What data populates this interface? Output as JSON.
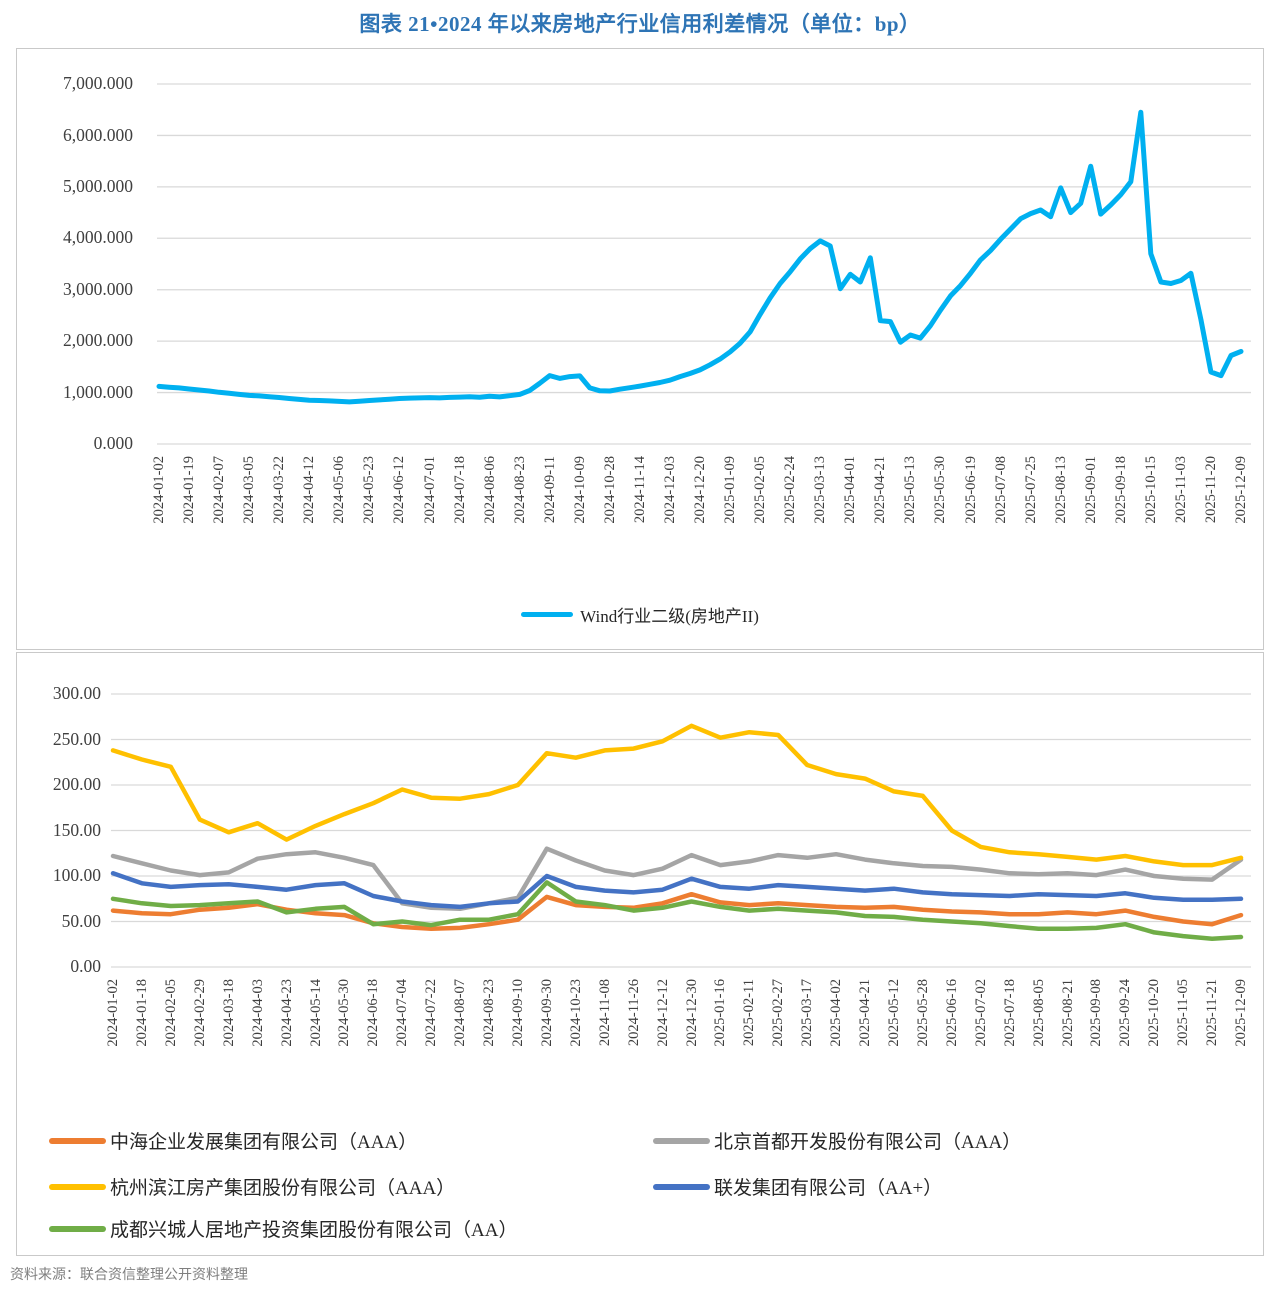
{
  "title": "图表 21•2024 年以来房地产行业信用利差情况（单位：bp）",
  "source": "资料来源：联合资信整理公开资料整理",
  "colors": {
    "title_blue": "#2E74B5",
    "grid": "#D9D9D9",
    "axis_text": "#404040",
    "wind_line": "#00B0F0",
    "orange": "#ED7D31",
    "gray": "#A5A5A5",
    "yellow": "#FFC000",
    "blue": "#4472C4",
    "green": "#70AD47"
  },
  "chart_data": [
    {
      "type": "line",
      "title": "",
      "xlabel": "",
      "ylabel": "",
      "ylim": [
        0,
        7000
      ],
      "grid": true,
      "legend_position": "bottom-center",
      "ytick_labels": [
        "0.000",
        "1,000.000",
        "2,000.000",
        "3,000.000",
        "4,000.000",
        "5,000.000",
        "6,000.000",
        "7,000.000"
      ],
      "yticks": [
        0,
        1000,
        2000,
        3000,
        4000,
        5000,
        6000,
        7000
      ],
      "categories": [
        "2024-01-02",
        "2024-01-19",
        "2024-02-07",
        "2024-03-05",
        "2024-03-22",
        "2024-04-12",
        "2024-05-06",
        "2024-05-23",
        "2024-06-12",
        "2024-07-01",
        "2024-07-18",
        "2024-08-06",
        "2024-08-23",
        "2024-09-11",
        "2024-10-09",
        "2024-10-28",
        "2024-11-14",
        "2024-12-03",
        "2024-12-20",
        "2025-01-09",
        "2025-02-05",
        "2025-02-24",
        "2025-03-13",
        "2025-04-01",
        "2025-04-21",
        "2025-05-13",
        "2025-05-30",
        "2025-06-19",
        "2025-07-08",
        "2025-07-25",
        "2025-08-13",
        "2025-09-01",
        "2025-09-18",
        "2025-10-15",
        "2025-11-03",
        "2025-11-20",
        "2025-12-09"
      ],
      "series": [
        {
          "name": "Wind行业二级(房地产II)",
          "color": "#00B0F0",
          "points_per_category_interval": 3,
          "values": [
            1120,
            1105,
            1090,
            1070,
            1050,
            1030,
            1005,
            985,
            965,
            945,
            935,
            920,
            905,
            885,
            868,
            852,
            845,
            838,
            828,
            818,
            832,
            845,
            858,
            872,
            885,
            892,
            896,
            902,
            896,
            906,
            912,
            920,
            908,
            928,
            915,
            940,
            965,
            1040,
            1180,
            1330,
            1275,
            1310,
            1325,
            1090,
            1035,
            1030,
            1065,
            1095,
            1125,
            1160,
            1195,
            1240,
            1310,
            1370,
            1440,
            1540,
            1650,
            1790,
            1960,
            2180,
            2520,
            2840,
            3120,
            3350,
            3600,
            3800,
            3950,
            3850,
            3020,
            3300,
            3150,
            3620,
            2400,
            2380,
            1980,
            2120,
            2060,
            2300,
            2600,
            2880,
            3080,
            3320,
            3580,
            3760,
            3980,
            4180,
            4380,
            4480,
            4550,
            4420,
            4980,
            4500,
            4680,
            5400,
            4470,
            4650,
            4850,
            5100,
            6450,
            3700,
            3150,
            3120,
            3180,
            3320,
            2420,
            1400,
            1330,
            1720,
            1800
          ]
        }
      ]
    },
    {
      "type": "line",
      "title": "",
      "xlabel": "",
      "ylabel": "",
      "ylim": [
        0,
        300
      ],
      "grid": true,
      "legend_position": "bottom-two-columns",
      "ytick_labels": [
        "0.00",
        "50.00",
        "100.00",
        "150.00",
        "200.00",
        "250.00",
        "300.00"
      ],
      "yticks": [
        0,
        50,
        100,
        150,
        200,
        250,
        300
      ],
      "categories": [
        "2024-01-02",
        "2024-01-18",
        "2024-02-05",
        "2024-02-29",
        "2024-03-18",
        "2024-04-03",
        "2024-04-23",
        "2024-05-14",
        "2024-05-30",
        "2024-06-18",
        "2024-07-04",
        "2024-07-22",
        "2024-08-07",
        "2024-08-23",
        "2024-09-10",
        "2024-09-30",
        "2024-10-23",
        "2024-11-08",
        "2024-11-26",
        "2024-12-12",
        "2024-12-30",
        "2025-01-16",
        "2025-02-11",
        "2025-02-27",
        "2025-03-17",
        "2025-04-02",
        "2025-04-21",
        "2025-05-12",
        "2025-05-28",
        "2025-06-16",
        "2025-07-02",
        "2025-07-18",
        "2025-08-05",
        "2025-08-21",
        "2025-09-08",
        "2025-09-24",
        "2025-10-20",
        "2025-11-05",
        "2025-11-21",
        "2025-12-09"
      ],
      "series": [
        {
          "name": "中海企业发展集团有限公司（AAA）",
          "color": "#ED7D31",
          "values": [
            62,
            59,
            58,
            63,
            65,
            69,
            63,
            59,
            57,
            48,
            44,
            42,
            43,
            47,
            52,
            77,
            68,
            66,
            65,
            70,
            80,
            71,
            68,
            70,
            68,
            66,
            65,
            66,
            63,
            61,
            60,
            58,
            58,
            60,
            58,
            62,
            55,
            50,
            47,
            57
          ]
        },
        {
          "name": "北京首都开发股份有限公司（AAA）",
          "color": "#A5A5A5",
          "values": [
            122,
            114,
            106,
            101,
            104,
            119,
            124,
            126,
            120,
            112,
            70,
            65,
            64,
            70,
            76,
            130,
            117,
            106,
            101,
            108,
            123,
            112,
            116,
            123,
            120,
            124,
            118,
            114,
            111,
            110,
            107,
            103,
            102,
            103,
            101,
            107,
            100,
            97,
            96,
            118
          ]
        },
        {
          "name": "杭州滨江房产集团股份有限公司（AAA）",
          "color": "#FFC000",
          "values": [
            238,
            228,
            220,
            162,
            148,
            158,
            140,
            155,
            168,
            180,
            195,
            186,
            185,
            190,
            200,
            235,
            230,
            238,
            240,
            248,
            265,
            252,
            258,
            255,
            222,
            212,
            207,
            193,
            188,
            150,
            132,
            126,
            124,
            121,
            118,
            122,
            116,
            112,
            112,
            120
          ]
        },
        {
          "name": "联发集团有限公司（AA+）",
          "color": "#4472C4",
          "values": [
            103,
            92,
            88,
            90,
            91,
            88,
            85,
            90,
            92,
            78,
            72,
            68,
            66,
            70,
            72,
            100,
            88,
            84,
            82,
            85,
            97,
            88,
            86,
            90,
            88,
            86,
            84,
            86,
            82,
            80,
            79,
            78,
            80,
            79,
            78,
            81,
            76,
            74,
            74,
            75
          ]
        },
        {
          "name": "成都兴城人居地产投资集团股份有限公司（AA）",
          "color": "#70AD47",
          "values": [
            75,
            70,
            67,
            68,
            70,
            72,
            60,
            64,
            66,
            47,
            50,
            46,
            52,
            52,
            58,
            93,
            72,
            68,
            62,
            65,
            72,
            66,
            62,
            64,
            62,
            60,
            56,
            55,
            52,
            50,
            48,
            45,
            42,
            42,
            43,
            47,
            38,
            34,
            31,
            33
          ]
        }
      ]
    }
  ]
}
